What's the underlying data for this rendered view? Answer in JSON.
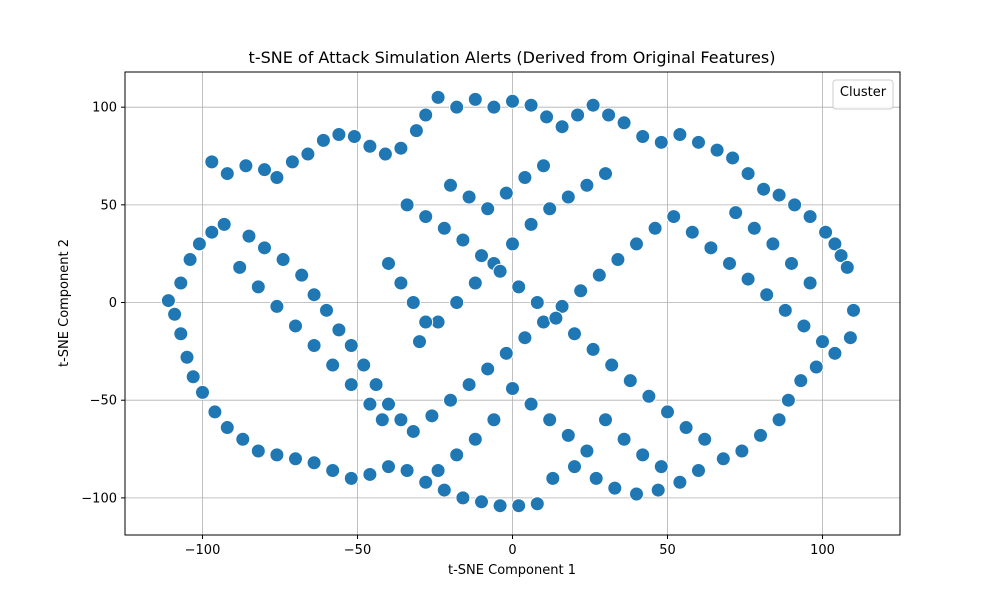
{
  "chart_data": {
    "type": "scatter",
    "title": "t-SNE of Attack Simulation Alerts (Derived from Original Features)",
    "xlabel": "t-SNE Component 1",
    "ylabel": "t-SNE Component 2",
    "xlim": [
      -125,
      125
    ],
    "ylim": [
      -119,
      118
    ],
    "xticks": [
      -100,
      -50,
      0,
      50,
      100
    ],
    "yticks": [
      -100,
      -50,
      0,
      50,
      100
    ],
    "grid": true,
    "legend": {
      "title": "Cluster",
      "placement": "upper right",
      "entries": []
    },
    "point_color": "#1f77b4",
    "point_edge_color": "#ffffff",
    "points": [
      [
        -97,
        72
      ],
      [
        -92,
        66
      ],
      [
        -86,
        70
      ],
      [
        -80,
        68
      ],
      [
        -76,
        64
      ],
      [
        -71,
        72
      ],
      [
        -66,
        76
      ],
      [
        -61,
        83
      ],
      [
        -56,
        86
      ],
      [
        -51,
        85
      ],
      [
        -46,
        80
      ],
      [
        -41,
        76
      ],
      [
        -36,
        79
      ],
      [
        -31,
        88
      ],
      [
        -28,
        96
      ],
      [
        -24,
        105
      ],
      [
        -18,
        100
      ],
      [
        -12,
        104
      ],
      [
        -6,
        100
      ],
      [
        0,
        103
      ],
      [
        6,
        101
      ],
      [
        11,
        95
      ],
      [
        16,
        90
      ],
      [
        21,
        96
      ],
      [
        26,
        101
      ],
      [
        31,
        96
      ],
      [
        36,
        92
      ],
      [
        42,
        85
      ],
      [
        48,
        82
      ],
      [
        54,
        86
      ],
      [
        60,
        82
      ],
      [
        66,
        78
      ],
      [
        71,
        74
      ],
      [
        76,
        66
      ],
      [
        81,
        58
      ],
      [
        86,
        55
      ],
      [
        91,
        50
      ],
      [
        96,
        44
      ],
      [
        101,
        36
      ],
      [
        104,
        30
      ],
      [
        106,
        24
      ],
      [
        108,
        18
      ],
      [
        110,
        -4
      ],
      [
        109,
        -18
      ],
      [
        104,
        -26
      ],
      [
        98,
        -33
      ],
      [
        93,
        -40
      ],
      [
        89,
        -50
      ],
      [
        86,
        -60
      ],
      [
        80,
        -68
      ],
      [
        74,
        -76
      ],
      [
        68,
        -80
      ],
      [
        60,
        -86
      ],
      [
        54,
        -92
      ],
      [
        47,
        -96
      ],
      [
        40,
        -98
      ],
      [
        33,
        -95
      ],
      [
        27,
        -90
      ],
      [
        20,
        -84
      ],
      [
        13,
        -90
      ],
      [
        8,
        -103
      ],
      [
        2,
        -104
      ],
      [
        -4,
        -104
      ],
      [
        -10,
        -102
      ],
      [
        -16,
        -100
      ],
      [
        -22,
        -96
      ],
      [
        -28,
        -92
      ],
      [
        -34,
        -86
      ],
      [
        -40,
        -84
      ],
      [
        -46,
        -88
      ],
      [
        -52,
        -90
      ],
      [
        -58,
        -86
      ],
      [
        -64,
        -82
      ],
      [
        -70,
        -80
      ],
      [
        -76,
        -78
      ],
      [
        -82,
        -76
      ],
      [
        -87,
        -70
      ],
      [
        -92,
        -64
      ],
      [
        -96,
        -56
      ],
      [
        -100,
        -46
      ],
      [
        -103,
        -38
      ],
      [
        -105,
        -28
      ],
      [
        -107,
        -16
      ],
      [
        -109,
        -6
      ],
      [
        -111,
        1
      ],
      [
        -107,
        10
      ],
      [
        -104,
        22
      ],
      [
        -101,
        30
      ],
      [
        -97,
        36
      ],
      [
        -93,
        40
      ],
      [
        -85,
        34
      ],
      [
        -80,
        28
      ],
      [
        -74,
        22
      ],
      [
        -68,
        14
      ],
      [
        -64,
        4
      ],
      [
        -60,
        -4
      ],
      [
        -56,
        -14
      ],
      [
        -52,
        -22
      ],
      [
        -48,
        -32
      ],
      [
        -44,
        -42
      ],
      [
        -40,
        -52
      ],
      [
        -36,
        -60
      ],
      [
        -32,
        -66
      ],
      [
        -26,
        -58
      ],
      [
        -20,
        -50
      ],
      [
        -14,
        -42
      ],
      [
        -8,
        -34
      ],
      [
        -2,
        -26
      ],
      [
        4,
        -18
      ],
      [
        10,
        -10
      ],
      [
        16,
        -2
      ],
      [
        22,
        6
      ],
      [
        28,
        14
      ],
      [
        34,
        22
      ],
      [
        40,
        30
      ],
      [
        46,
        38
      ],
      [
        52,
        44
      ],
      [
        58,
        36
      ],
      [
        64,
        28
      ],
      [
        70,
        20
      ],
      [
        76,
        12
      ],
      [
        82,
        4
      ],
      [
        88,
        -4
      ],
      [
        94,
        -12
      ],
      [
        100,
        -20
      ],
      [
        96,
        10
      ],
      [
        90,
        20
      ],
      [
        84,
        30
      ],
      [
        78,
        38
      ],
      [
        72,
        46
      ],
      [
        -88,
        18
      ],
      [
        -82,
        8
      ],
      [
        -76,
        -2
      ],
      [
        -70,
        -12
      ],
      [
        -64,
        -22
      ],
      [
        -58,
        -32
      ],
      [
        -52,
        -42
      ],
      [
        -46,
        -52
      ],
      [
        -42,
        -60
      ],
      [
        -30,
        -20
      ],
      [
        -24,
        -10
      ],
      [
        -18,
        0
      ],
      [
        -12,
        10
      ],
      [
        -6,
        20
      ],
      [
        0,
        30
      ],
      [
        6,
        40
      ],
      [
        12,
        48
      ],
      [
        18,
        54
      ],
      [
        24,
        60
      ],
      [
        30,
        66
      ],
      [
        -34,
        50
      ],
      [
        -28,
        44
      ],
      [
        -22,
        38
      ],
      [
        -16,
        32
      ],
      [
        -10,
        24
      ],
      [
        -4,
        16
      ],
      [
        2,
        8
      ],
      [
        8,
        0
      ],
      [
        14,
        -8
      ],
      [
        20,
        -16
      ],
      [
        26,
        -24
      ],
      [
        32,
        -32
      ],
      [
        38,
        -40
      ],
      [
        44,
        -48
      ],
      [
        50,
        -56
      ],
      [
        56,
        -64
      ],
      [
        62,
        -70
      ],
      [
        -20,
        60
      ],
      [
        -14,
        54
      ],
      [
        -8,
        48
      ],
      [
        -2,
        56
      ],
      [
        4,
        64
      ],
      [
        10,
        70
      ],
      [
        -40,
        20
      ],
      [
        -36,
        10
      ],
      [
        -32,
        0
      ],
      [
        -28,
        -10
      ],
      [
        30,
        -60
      ],
      [
        36,
        -70
      ],
      [
        42,
        -78
      ],
      [
        48,
        -84
      ],
      [
        24,
        -76
      ],
      [
        18,
        -68
      ],
      [
        12,
        -60
      ],
      [
        6,
        -52
      ],
      [
        0,
        -44
      ],
      [
        -6,
        -60
      ],
      [
        -12,
        -70
      ],
      [
        -18,
        -78
      ],
      [
        -24,
        -86
      ]
    ]
  }
}
